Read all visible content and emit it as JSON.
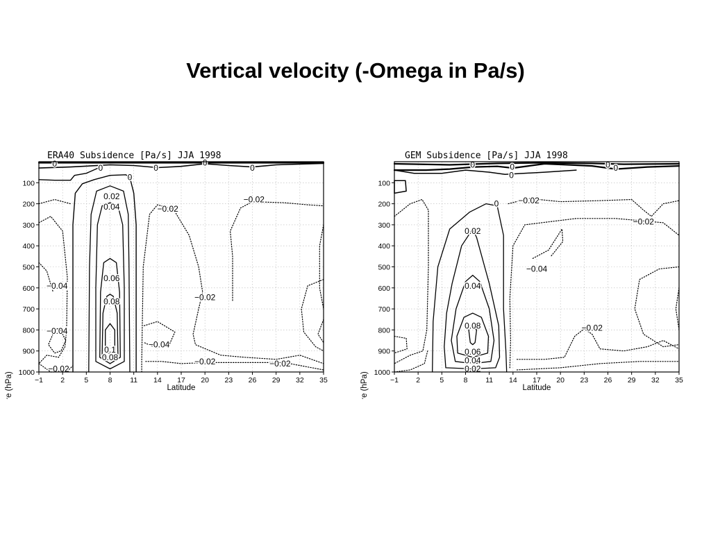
{
  "slide": {
    "title": "Vertical velocity (-Omega in Pa/s)"
  },
  "chart_data": [
    {
      "type": "contour",
      "title": "ERA40 Subsidence [Pa/s] JJA 1998",
      "xlabel": "Latitude",
      "ylabel": "Pressure (hPa)",
      "xlim": [
        -1,
        35
      ],
      "ylim": [
        1000,
        0
      ],
      "x_ticks": [
        "-1",
        "2",
        "5",
        "8",
        "11",
        "14",
        "17",
        "20",
        "23",
        "26",
        "29",
        "32",
        "35"
      ],
      "y_ticks": [
        "100",
        "200",
        "300",
        "400",
        "500",
        "600",
        "700",
        "800",
        "900",
        "1000"
      ],
      "grid": true,
      "solid_levels": [
        0,
        0.02,
        0.04,
        0.06,
        0.08,
        0.1
      ],
      "dotted_levels": [
        -0.02,
        -0.04
      ],
      "contour_labels": [
        {
          "text": "0",
          "lat": 1,
          "p": 10
        },
        {
          "text": "0",
          "lat": 6.8,
          "p": 30
        },
        {
          "text": "0",
          "lat": 10.5,
          "p": 75
        },
        {
          "text": "0",
          "lat": 13.8,
          "p": 30
        },
        {
          "text": "0",
          "lat": 20,
          "p": 5
        },
        {
          "text": "0",
          "lat": 26,
          "p": 30
        },
        {
          "text": "0.02",
          "lat": 8.2,
          "p": 165
        },
        {
          "text": "0.04",
          "lat": 8.2,
          "p": 215
        },
        {
          "text": "-0.02",
          "lat": 15.3,
          "p": 225
        },
        {
          "text": "-0.02",
          "lat": 26.2,
          "p": 180
        },
        {
          "text": "0.06",
          "lat": 8.2,
          "p": 555
        },
        {
          "text": "0.08",
          "lat": 8.2,
          "p": 665
        },
        {
          "text": "-0.04",
          "lat": 1.3,
          "p": 590
        },
        {
          "text": "-0.02",
          "lat": 20,
          "p": 645
        },
        {
          "text": "-0.04",
          "lat": 1.3,
          "p": 805
        },
        {
          "text": "-0.04",
          "lat": 14.2,
          "p": 870
        },
        {
          "text": "0.1",
          "lat": 8,
          "p": 895
        },
        {
          "text": "0.08",
          "lat": 8,
          "p": 930
        },
        {
          "text": "-0.02",
          "lat": 20,
          "p": 950
        },
        {
          "text": "-0.02",
          "lat": 29.5,
          "p": 960
        },
        {
          "text": "-0.02",
          "lat": 1.5,
          "p": 985
        }
      ]
    },
    {
      "type": "contour",
      "title": "GEM Subsidence [Pa/s] JJA 1998",
      "xlabel": "Latitude",
      "ylabel": "Pressure (hPa)",
      "xlim": [
        -1,
        35
      ],
      "ylim": [
        1000,
        0
      ],
      "x_ticks": [
        "-1",
        "2",
        "5",
        "8",
        "11",
        "14",
        "17",
        "20",
        "23",
        "26",
        "29",
        "32",
        "35"
      ],
      "y_ticks": [
        "100",
        "200",
        "300",
        "400",
        "500",
        "600",
        "700",
        "800",
        "900",
        "1000"
      ],
      "grid": true,
      "solid_levels": [
        0,
        0.02,
        0.04,
        0.06,
        0.08
      ],
      "dotted_levels": [
        -0.02,
        -0.04
      ],
      "contour_labels": [
        {
          "text": "0",
          "lat": 8.9,
          "p": 15
        },
        {
          "text": "0",
          "lat": 13.9,
          "p": 25
        },
        {
          "text": "0",
          "lat": 13.8,
          "p": 65
        },
        {
          "text": "0",
          "lat": 26,
          "p": 15
        },
        {
          "text": "0",
          "lat": 27,
          "p": 30
        },
        {
          "text": "0",
          "lat": 11.9,
          "p": 200
        },
        {
          "text": "-0.02",
          "lat": 16,
          "p": 185
        },
        {
          "text": "-0.02",
          "lat": 30.5,
          "p": 285
        },
        {
          "text": "0.02",
          "lat": 8.9,
          "p": 330
        },
        {
          "text": "-0.04",
          "lat": 17,
          "p": 510
        },
        {
          "text": "0.04",
          "lat": 8.9,
          "p": 590
        },
        {
          "text": "0.08",
          "lat": 8.9,
          "p": 780
        },
        {
          "text": "-0.02",
          "lat": 24,
          "p": 790
        },
        {
          "text": "0.06",
          "lat": 8.9,
          "p": 905
        },
        {
          "text": "0.04",
          "lat": 8.9,
          "p": 945
        },
        {
          "text": "0.02",
          "lat": 8.9,
          "p": 985
        }
      ]
    }
  ]
}
